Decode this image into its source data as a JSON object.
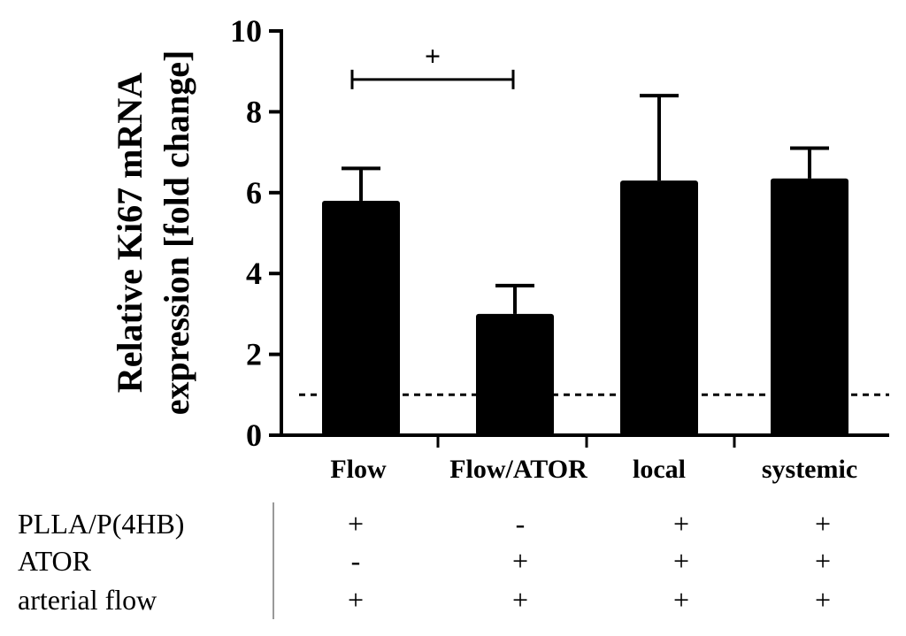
{
  "chart_data": {
    "type": "bar",
    "title": "",
    "ylabel_line1": "Relative Ki67 mRNA",
    "ylabel_line2": "expression [fold change]",
    "xlabel": "",
    "ylim": [
      0,
      10
    ],
    "yticks": [
      "0",
      "2",
      "4",
      "6",
      "8",
      "10"
    ],
    "reference_line": 1,
    "categories": [
      "Flow",
      "Flow/ATOR",
      "local",
      "systemic"
    ],
    "values": [
      5.8,
      3.0,
      6.3,
      6.35
    ],
    "error_upper": [
      6.6,
      3.7,
      8.4,
      7.1
    ],
    "annotation": {
      "symbol": "+",
      "from": "Flow",
      "to": "Flow/ATOR",
      "level": 8.8
    },
    "conditions": {
      "rows": [
        {
          "label": "PLLA/P(4HB)",
          "values": [
            "+",
            "-",
            "+",
            "+"
          ]
        },
        {
          "label": "ATOR",
          "values": [
            "-",
            "+",
            "+",
            "+"
          ]
        },
        {
          "label": "arterial flow",
          "values": [
            "+",
            "+",
            "+",
            "+"
          ]
        }
      ]
    }
  }
}
